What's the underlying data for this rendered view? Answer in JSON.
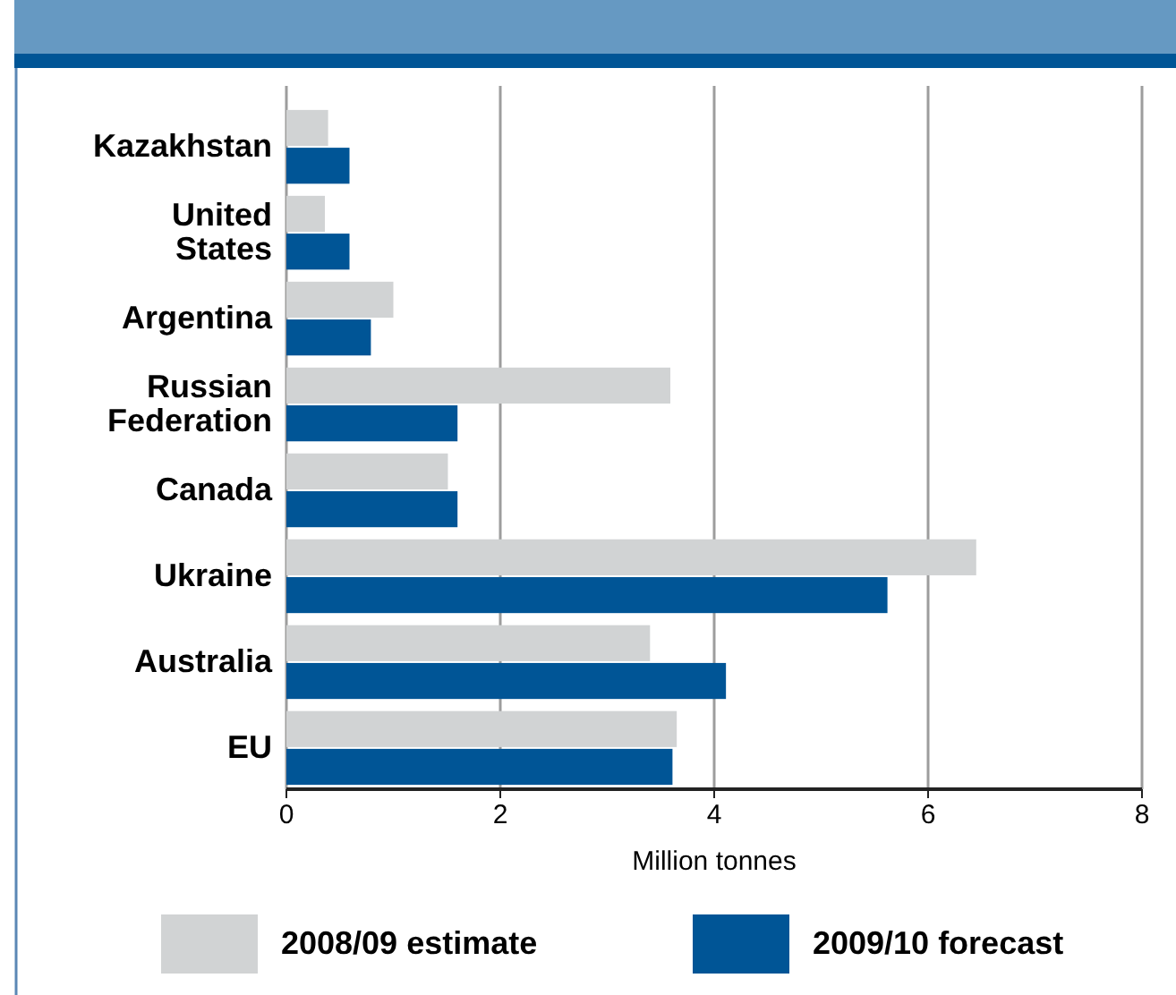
{
  "chart_data": {
    "type": "bar",
    "orientation": "horizontal",
    "categories": [
      "Kazakhstan",
      "United States",
      "Argentina",
      "Russian Federation",
      "Canada",
      "Ukraine",
      "Australia",
      "EU"
    ],
    "series": [
      {
        "name": "2008/09 estimate",
        "color": "#d1d3d4",
        "values": [
          0.39,
          0.36,
          1.0,
          3.59,
          1.51,
          6.45,
          3.4,
          3.65
        ]
      },
      {
        "name": "2009/10 forecast",
        "color": "#005596",
        "values": [
          0.59,
          0.59,
          0.79,
          1.6,
          1.6,
          5.62,
          4.11,
          3.61
        ]
      }
    ],
    "xlim": [
      0,
      8
    ],
    "xticks": [
      0,
      2,
      4,
      6,
      8
    ],
    "xlabel": "Million tonnes",
    "grid": "x",
    "legend": "bottom"
  }
}
